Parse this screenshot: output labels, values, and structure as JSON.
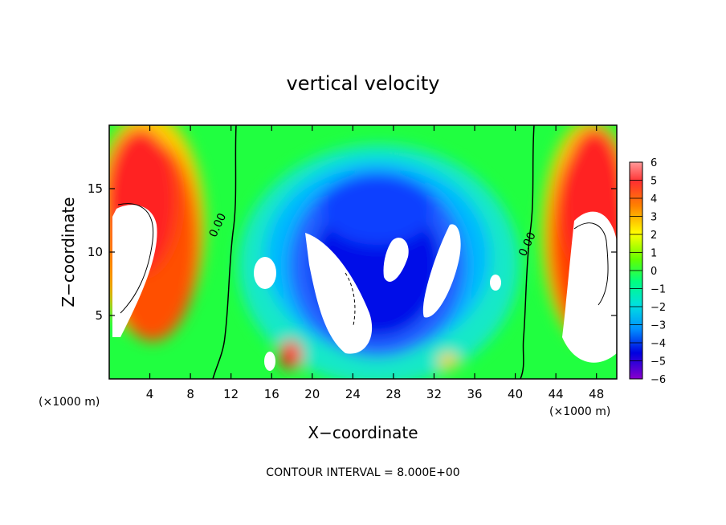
{
  "chart_data": {
    "type": "heatmap",
    "title": "vertical velocity",
    "xlabel": "X−coordinate",
    "ylabel": "Z−coordinate",
    "x_unit_left": "(×1000 m)",
    "x_unit_right": "(×1000 m)",
    "footer": "CONTOUR INTERVAL = 8.000E+00",
    "xlim": [
      0,
      50
    ],
    "ylim": [
      0,
      20
    ],
    "x_ticks": [
      4,
      8,
      12,
      16,
      20,
      24,
      28,
      32,
      36,
      40,
      44,
      48
    ],
    "x_tick_labels": [
      "4",
      "8",
      "12",
      "16",
      "20",
      "24",
      "28",
      "32",
      "36",
      "40",
      "44",
      "48"
    ],
    "y_ticks": [
      5,
      10,
      15
    ],
    "y_tick_labels": [
      "5",
      "10",
      "15"
    ],
    "colorbar": {
      "min": -6,
      "max": 6,
      "labels": [
        "6",
        "5",
        "4",
        "3",
        "2",
        "1",
        "0",
        "−1",
        "−2",
        "−3",
        "−4",
        "−5",
        "−6"
      ],
      "colors": [
        "#ff0000",
        "#ff8800",
        "#ffff00",
        "#00ff00",
        "#00ffff",
        "#0088ff",
        "#0000ff",
        "#8800ff"
      ]
    },
    "contour_labels": [
      {
        "text": "0.00",
        "x": 11.0,
        "z": 12.0
      },
      {
        "text": "0.00",
        "x": 41.5,
        "z": 10.5
      }
    ]
  }
}
